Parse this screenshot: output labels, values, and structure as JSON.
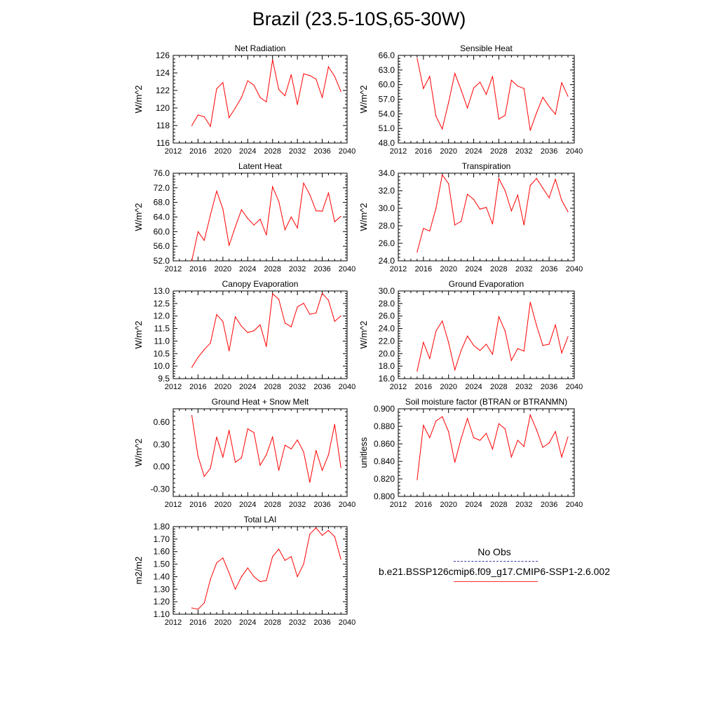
{
  "page": {
    "title": "Brazil (23.5-10S,65-30W)"
  },
  "legend": {
    "obs_label": "No Obs",
    "case_label": "b.e21.BSSP126cmip6.f09_g17.CMIP6-SSP1-2.6.002",
    "obs_color": "#3a3aa8",
    "case_color": "#ff0000"
  },
  "chart_data": [
    {
      "type": "line",
      "title": "Net Radiation",
      "ylabel": "W/m^2",
      "xlim": [
        2012,
        2040
      ],
      "ylim": [
        116,
        126
      ],
      "xticks": [
        "2012",
        "2016",
        "2020",
        "2024",
        "2028",
        "2032",
        "2036",
        "2040"
      ],
      "yticks": [
        "116",
        "118",
        "120",
        "122",
        "124",
        "126"
      ],
      "x": [
        2015,
        2016,
        2017,
        2018,
        2019,
        2020,
        2021,
        2022,
        2023,
        2024,
        2025,
        2026,
        2027,
        2028,
        2029,
        2030,
        2031,
        2032,
        2033,
        2034,
        2035,
        2036,
        2037,
        2038,
        2039
      ],
      "series": [
        {
          "values": [
            118.0,
            119.2,
            119.0,
            117.9,
            122.2,
            122.9,
            118.9,
            120.0,
            121.2,
            123.1,
            122.6,
            121.2,
            120.7,
            125.5,
            122.1,
            121.4,
            123.8,
            120.4,
            123.9,
            123.7,
            123.3,
            121.2,
            124.7,
            123.6,
            121.9
          ]
        }
      ]
    },
    {
      "type": "line",
      "title": "Sensible Heat",
      "ylabel": "W/m^2",
      "xlim": [
        2012,
        2040
      ],
      "ylim": [
        48,
        66
      ],
      "xticks": [
        "2012",
        "2016",
        "2020",
        "2024",
        "2028",
        "2032",
        "2036",
        "2040"
      ],
      "yticks": [
        "48.0",
        "51.0",
        "54.0",
        "57.0",
        "60.0",
        "63.0",
        "66.0"
      ],
      "x": [
        2015,
        2016,
        2017,
        2018,
        2019,
        2020,
        2021,
        2022,
        2023,
        2024,
        2025,
        2026,
        2027,
        2028,
        2029,
        2030,
        2031,
        2032,
        2033,
        2034,
        2035,
        2036,
        2037,
        2038,
        2039
      ],
      "series": [
        {
          "values": [
            65.4,
            59.2,
            61.7,
            53.5,
            50.9,
            56.3,
            62.3,
            58.9,
            55.2,
            59.3,
            60.5,
            58.0,
            61.7,
            52.9,
            53.7,
            60.9,
            59.7,
            59.2,
            50.6,
            54.2,
            57.4,
            55.5,
            53.9,
            60.4,
            57.6
          ]
        }
      ]
    },
    {
      "type": "line",
      "title": "Latent Heat",
      "ylabel": "W/m^2",
      "xlim": [
        2012,
        2040
      ],
      "ylim": [
        52,
        76
      ],
      "xticks": [
        "2012",
        "2016",
        "2020",
        "2024",
        "2028",
        "2032",
        "2036",
        "2040"
      ],
      "yticks": [
        "52.0",
        "56.0",
        "60.0",
        "64.0",
        "68.0",
        "72.0",
        "76.0"
      ],
      "x": [
        2015,
        2016,
        2017,
        2018,
        2019,
        2020,
        2021,
        2022,
        2023,
        2024,
        2025,
        2026,
        2027,
        2028,
        2029,
        2030,
        2031,
        2032,
        2033,
        2034,
        2035,
        2036,
        2037,
        2038,
        2039
      ],
      "series": [
        {
          "values": [
            52.0,
            60.0,
            57.6,
            64.6,
            71.1,
            66.2,
            56.2,
            61.3,
            66.0,
            63.6,
            61.8,
            63.4,
            59.1,
            72.3,
            68.3,
            60.5,
            64.0,
            61.0,
            73.3,
            70.1,
            65.7,
            65.6,
            70.6,
            62.7,
            64.2
          ]
        }
      ]
    },
    {
      "type": "line",
      "title": "Transpiration",
      "ylabel": "W/m^2",
      "xlim": [
        2012,
        2040
      ],
      "ylim": [
        24,
        34
      ],
      "xticks": [
        "2012",
        "2016",
        "2020",
        "2024",
        "2028",
        "2032",
        "2036",
        "2040"
      ],
      "yticks": [
        "24.0",
        "26.0",
        "28.0",
        "30.0",
        "32.0",
        "34.0"
      ],
      "x": [
        2015,
        2016,
        2017,
        2018,
        2019,
        2020,
        2021,
        2022,
        2023,
        2024,
        2025,
        2026,
        2027,
        2028,
        2029,
        2030,
        2031,
        2032,
        2033,
        2034,
        2035,
        2036,
        2037,
        2038,
        2039
      ],
      "series": [
        {
          "values": [
            25.0,
            27.7,
            27.4,
            30.0,
            33.8,
            32.8,
            28.1,
            28.5,
            31.6,
            31.0,
            29.9,
            30.1,
            28.2,
            33.4,
            32.0,
            29.7,
            31.5,
            28.1,
            32.6,
            33.4,
            32.3,
            31.2,
            33.3,
            30.9,
            29.6
          ]
        }
      ]
    },
    {
      "type": "line",
      "title": "Canopy Evaporation",
      "ylabel": "W/m^2",
      "xlim": [
        2012,
        2040
      ],
      "ylim": [
        9.5,
        13.0
      ],
      "xticks": [
        "2012",
        "2016",
        "2020",
        "2024",
        "2028",
        "2032",
        "2036",
        "2040"
      ],
      "yticks": [
        "9.5",
        "10.0",
        "10.5",
        "11.0",
        "11.5",
        "12.0",
        "12.5",
        "13.0"
      ],
      "x": [
        2015,
        2016,
        2017,
        2018,
        2019,
        2020,
        2021,
        2022,
        2023,
        2024,
        2025,
        2026,
        2027,
        2028,
        2029,
        2030,
        2031,
        2032,
        2033,
        2034,
        2035,
        2036,
        2037,
        2038,
        2039
      ],
      "series": [
        {
          "values": [
            9.95,
            10.35,
            10.66,
            10.92,
            12.06,
            11.78,
            10.61,
            11.97,
            11.59,
            11.34,
            11.41,
            11.65,
            10.78,
            12.89,
            12.67,
            11.72,
            11.57,
            12.36,
            12.51,
            12.07,
            12.12,
            12.91,
            12.63,
            11.79,
            12.0
          ]
        }
      ]
    },
    {
      "type": "line",
      "title": "Ground Evaporation",
      "ylabel": "W/m^2",
      "xlim": [
        2012,
        2040
      ],
      "ylim": [
        16,
        30
      ],
      "xticks": [
        "2012",
        "2016",
        "2020",
        "2024",
        "2028",
        "2032",
        "2036",
        "2040"
      ],
      "yticks": [
        "16.0",
        "18.0",
        "20.0",
        "22.0",
        "24.0",
        "26.0",
        "28.0",
        "30.0"
      ],
      "x": [
        2015,
        2016,
        2017,
        2018,
        2019,
        2020,
        2021,
        2022,
        2023,
        2024,
        2025,
        2026,
        2027,
        2028,
        2029,
        2030,
        2031,
        2032,
        2033,
        2034,
        2035,
        2036,
        2037,
        2038,
        2039
      ],
      "series": [
        {
          "values": [
            17.2,
            21.8,
            19.2,
            23.6,
            25.2,
            21.8,
            17.4,
            20.5,
            22.8,
            21.3,
            20.5,
            21.5,
            19.9,
            25.9,
            23.6,
            18.9,
            20.8,
            20.4,
            28.2,
            24.5,
            21.3,
            21.5,
            24.6,
            20.1,
            22.7
          ]
        }
      ]
    },
    {
      "type": "line",
      "title": "Ground Heat + Snow Melt",
      "ylabel": "W/m^2",
      "xlim": [
        2012,
        2040
      ],
      "ylim": [
        -0.4,
        0.78
      ],
      "xticks": [
        "2012",
        "2016",
        "2020",
        "2024",
        "2028",
        "2032",
        "2036",
        "2040"
      ],
      "yticks": [
        "-0.30",
        "0.00",
        "0.30",
        "0.60"
      ],
      "x": [
        2015,
        2016,
        2017,
        2018,
        2019,
        2020,
        2021,
        2022,
        2023,
        2024,
        2025,
        2026,
        2027,
        2028,
        2029,
        2030,
        2031,
        2032,
        2033,
        2034,
        2035,
        2036,
        2037,
        2038,
        2039
      ],
      "series": [
        {
          "values": [
            0.69,
            0.14,
            -0.13,
            -0.02,
            0.4,
            0.13,
            0.49,
            0.06,
            0.12,
            0.51,
            0.46,
            0.02,
            0.16,
            0.4,
            -0.05,
            0.29,
            0.24,
            0.36,
            0.2,
            -0.21,
            0.22,
            -0.05,
            0.16,
            0.57,
            -0.01
          ]
        }
      ]
    },
    {
      "type": "line",
      "title": "Soil moisture factor (BTRAN or BTRANMN)",
      "ylabel": "unitless",
      "xlim": [
        2012,
        2040
      ],
      "ylim": [
        0.8,
        0.9
      ],
      "xticks": [
        "2012",
        "2016",
        "2020",
        "2024",
        "2028",
        "2032",
        "2036",
        "2040"
      ],
      "yticks": [
        "0.800",
        "0.820",
        "0.840",
        "0.860",
        "0.880",
        "0.900"
      ],
      "x": [
        2015,
        2016,
        2017,
        2018,
        2019,
        2020,
        2021,
        2022,
        2023,
        2024,
        2025,
        2026,
        2027,
        2028,
        2029,
        2030,
        2031,
        2032,
        2033,
        2034,
        2035,
        2036,
        2037,
        2038,
        2039
      ],
      "series": [
        {
          "values": [
            0.819,
            0.881,
            0.867,
            0.886,
            0.891,
            0.874,
            0.839,
            0.866,
            0.889,
            0.867,
            0.864,
            0.872,
            0.854,
            0.883,
            0.877,
            0.845,
            0.864,
            0.857,
            0.893,
            0.876,
            0.856,
            0.861,
            0.874,
            0.845,
            0.868
          ]
        }
      ]
    },
    {
      "type": "line",
      "title": "Total LAI",
      "ylabel": "m2/m2",
      "xlim": [
        2012,
        2040
      ],
      "ylim": [
        1.1,
        1.8
      ],
      "xticks": [
        "2012",
        "2016",
        "2020",
        "2024",
        "2028",
        "2032",
        "2036",
        "2040"
      ],
      "yticks": [
        "1.10",
        "1.20",
        "1.30",
        "1.40",
        "1.50",
        "1.60",
        "1.70",
        "1.80"
      ],
      "x": [
        2015,
        2016,
        2017,
        2018,
        2019,
        2020,
        2021,
        2022,
        2023,
        2024,
        2025,
        2026,
        2027,
        2028,
        2029,
        2030,
        2031,
        2032,
        2033,
        2034,
        2035,
        2036,
        2037,
        2038,
        2039
      ],
      "series": [
        {
          "values": [
            1.15,
            1.14,
            1.19,
            1.38,
            1.51,
            1.55,
            1.43,
            1.3,
            1.4,
            1.47,
            1.4,
            1.36,
            1.37,
            1.56,
            1.62,
            1.53,
            1.56,
            1.4,
            1.5,
            1.74,
            1.79,
            1.73,
            1.77,
            1.72,
            1.54
          ]
        }
      ]
    }
  ]
}
